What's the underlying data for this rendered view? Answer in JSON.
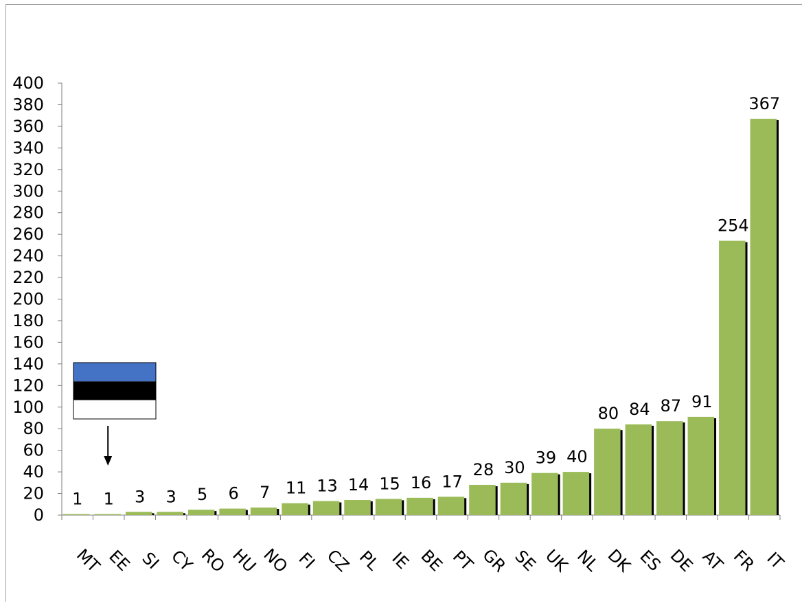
{
  "chart_data": {
    "type": "bar",
    "categories": [
      "MT",
      "EE",
      "SI",
      "CY",
      "RO",
      "HU",
      "NO",
      "FI",
      "CZ",
      "PL",
      "IE",
      "BE",
      "PT",
      "GR",
      "SE",
      "UK",
      "NL",
      "DK",
      "ES",
      "DE",
      "AT",
      "FR",
      "IT"
    ],
    "values": [
      1,
      1,
      3,
      3,
      5,
      6,
      7,
      11,
      13,
      14,
      15,
      16,
      17,
      28,
      30,
      39,
      40,
      80,
      84,
      87,
      91,
      254,
      367
    ],
    "ylim": [
      0,
      400
    ],
    "yticks": [
      0,
      20,
      40,
      60,
      80,
      100,
      120,
      140,
      160,
      180,
      200,
      220,
      240,
      260,
      280,
      300,
      320,
      340,
      360,
      380,
      400
    ],
    "grid": false,
    "bar_color": "#9bbb59",
    "shadow_color": "#000000",
    "annotation": {
      "type": "flag-with-arrow",
      "target_category": "EE",
      "flag_colors": [
        "#4472c4",
        "#000000",
        "#ffffff"
      ]
    }
  }
}
